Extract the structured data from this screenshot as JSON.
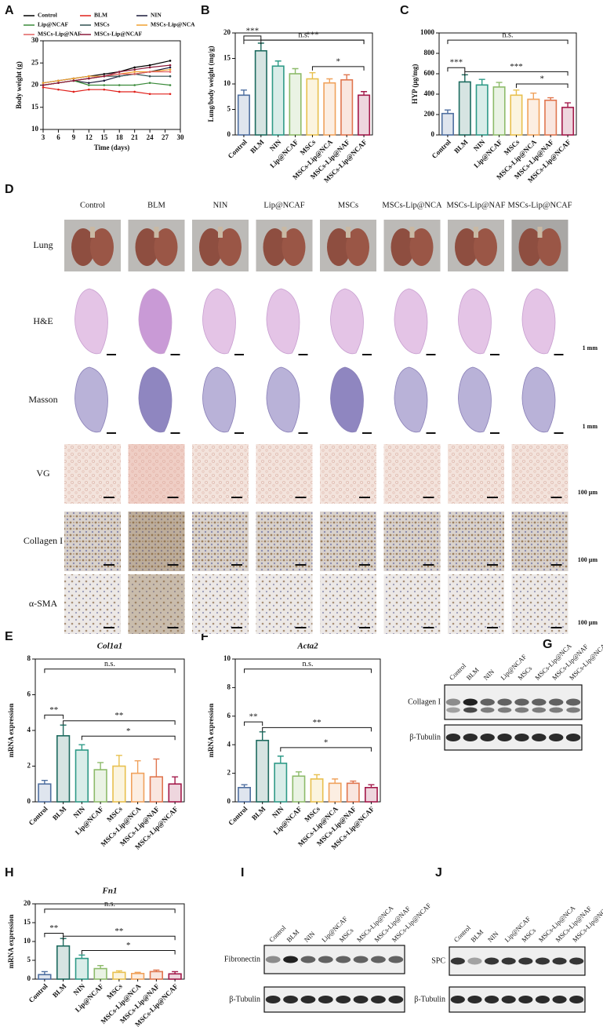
{
  "chart_data": [
    {
      "panel": "A",
      "type": "line",
      "xlabel": "Time (days)",
      "ylabel": "Body weight (g)",
      "x": [
        3,
        6,
        9,
        12,
        15,
        18,
        21,
        24,
        28
      ],
      "xlim": [
        3,
        30
      ],
      "xticks": [
        3,
        6,
        9,
        12,
        15,
        18,
        21,
        24,
        27,
        30
      ],
      "ylim": [
        10,
        30
      ],
      "yticks": [
        10,
        15,
        20,
        25,
        30
      ],
      "series": [
        {
          "name": "Control",
          "color": "#000000",
          "values": [
            20.5,
            21,
            21.5,
            22,
            22.5,
            23,
            24,
            24.5,
            25.5
          ]
        },
        {
          "name": "BLM",
          "color": "#e0201b",
          "values": [
            19.5,
            19,
            18.5,
            19,
            19,
            18.5,
            18.5,
            18,
            18
          ]
        },
        {
          "name": "NIN",
          "color": "#1a1a3a",
          "values": [
            20,
            20.5,
            21,
            20.5,
            21,
            22,
            22.5,
            23,
            24
          ]
        },
        {
          "name": "Lip@NCAF",
          "color": "#3a8a3a",
          "values": [
            20,
            20.5,
            21,
            20,
            20,
            20,
            20,
            20.5,
            20
          ]
        },
        {
          "name": "MSCs",
          "color": "#2f4f4f",
          "values": [
            20,
            20.5,
            21,
            21.5,
            22,
            22,
            22.5,
            22,
            22
          ]
        },
        {
          "name": "MSCs-Lip@NCA",
          "color": "#f0a030",
          "values": [
            20.5,
            21,
            21.5,
            22,
            22,
            22.5,
            23,
            23,
            23.5
          ]
        },
        {
          "name": "MSCs-Lip@NAF",
          "color": "#e06060",
          "values": [
            20,
            20.5,
            21,
            21.5,
            22,
            22.5,
            22.5,
            23,
            23
          ]
        },
        {
          "name": "MSCs-Lip@NCAF",
          "color": "#8b1a3a",
          "values": [
            20,
            20.5,
            21,
            21.5,
            22,
            23,
            23.5,
            24,
            24.5
          ]
        }
      ]
    },
    {
      "panel": "B",
      "type": "bar",
      "ylabel": "Lung/body weight (mg/g)",
      "categories": [
        "Control",
        "BLM",
        "NIN",
        "Lip@NCAF",
        "MSCs",
        "MSCs-Lip@NCA",
        "MSCs-Lip@NAF",
        "MSCs-Lip@NCAF"
      ],
      "values": [
        7.8,
        16.5,
        13.5,
        12,
        11,
        10.2,
        10.8,
        7.8
      ],
      "errors": [
        1,
        1.5,
        1,
        1,
        1.2,
        0.8,
        1,
        0.7
      ],
      "colors": [
        "#4f6fa0",
        "#1d6b5f",
        "#2e9a87",
        "#8dbb6a",
        "#e8c04e",
        "#f0a25c",
        "#e0764f",
        "#a3194a"
      ],
      "ylim": [
        0,
        20
      ],
      "yticks": [
        0,
        5,
        10,
        15,
        20
      ],
      "annotations": [
        "n.s.",
        "***",
        "***",
        "*"
      ]
    },
    {
      "panel": "C",
      "type": "bar",
      "ylabel": "HYP (μg/mg)",
      "categories": [
        "Control",
        "BLM",
        "NIN",
        "Lip@NCAF",
        "MSCs",
        "MSCs-Lip@NCA",
        "MSCs-Lip@NAF",
        "MSCs-Lip@NCAF"
      ],
      "values": [
        210,
        520,
        490,
        470,
        390,
        350,
        340,
        270
      ],
      "errors": [
        35,
        70,
        55,
        45,
        50,
        60,
        25,
        45
      ],
      "colors": [
        "#4f6fa0",
        "#1d6b5f",
        "#2e9a87",
        "#8dbb6a",
        "#e8c04e",
        "#f0a25c",
        "#e0764f",
        "#a3194a"
      ],
      "ylim": [
        0,
        1000
      ],
      "yticks": [
        0,
        200,
        400,
        600,
        800,
        1000
      ],
      "annotations": [
        "n.s.",
        "***",
        "***",
        "*"
      ]
    },
    {
      "panel": "E",
      "type": "bar",
      "title": "Col1a1",
      "ylabel": "mRNA expression",
      "categories": [
        "Control",
        "BLM",
        "NIN",
        "Lip@NCAF",
        "MSCs",
        "MSCs-Lip@NCA",
        "MSCs-Lip@NAF",
        "MSCs-Lip@NCAF"
      ],
      "values": [
        1.0,
        3.7,
        2.9,
        1.8,
        2.0,
        1.6,
        1.4,
        1.0
      ],
      "errors": [
        0.2,
        0.6,
        0.3,
        0.4,
        0.6,
        0.7,
        1.0,
        0.4
      ],
      "colors": [
        "#4f6fa0",
        "#1d6b5f",
        "#2e9a87",
        "#8dbb6a",
        "#e8c04e",
        "#f0a25c",
        "#e0764f",
        "#a3194a"
      ],
      "ylim": [
        0,
        8
      ],
      "yticks": [
        0,
        2,
        4,
        6,
        8
      ],
      "annotations": [
        "n.s.",
        "**",
        "**",
        "*"
      ]
    },
    {
      "panel": "F",
      "type": "bar",
      "title": "Acta2",
      "ylabel": "mRNA expression",
      "categories": [
        "Control",
        "BLM",
        "NIN",
        "Lip@NCAF",
        "MSCs",
        "MSCs-Lip@NCA",
        "MSCs-Lip@NAF",
        "MSCs-Lip@NCAF"
      ],
      "values": [
        1.0,
        4.3,
        2.7,
        1.8,
        1.6,
        1.3,
        1.3,
        1.0
      ],
      "errors": [
        0.2,
        0.6,
        0.5,
        0.3,
        0.3,
        0.3,
        0.15,
        0.2
      ],
      "colors": [
        "#4f6fa0",
        "#1d6b5f",
        "#2e9a87",
        "#8dbb6a",
        "#e8c04e",
        "#f0a25c",
        "#e0764f",
        "#a3194a"
      ],
      "ylim": [
        0,
        10
      ],
      "yticks": [
        0,
        2,
        4,
        6,
        8,
        10
      ],
      "annotations": [
        "n.s.",
        "**",
        "**",
        "*"
      ]
    },
    {
      "panel": "H",
      "type": "bar",
      "title": "Fn1",
      "ylabel": "mRNA expression",
      "categories": [
        "Control",
        "BLM",
        "NIN",
        "Lip@NCAF",
        "MSCs",
        "MSCs-Lip@NCA",
        "MSCs-Lip@NAF",
        "MSCs-Lip@NCAF"
      ],
      "values": [
        1.2,
        8.8,
        5.5,
        2.8,
        1.8,
        1.5,
        2.0,
        1.4
      ],
      "errors": [
        0.8,
        2.0,
        0.9,
        0.8,
        0.4,
        0.3,
        0.4,
        0.6
      ],
      "colors": [
        "#4f6fa0",
        "#1d6b5f",
        "#2e9a87",
        "#8dbb6a",
        "#e8c04e",
        "#f0a25c",
        "#e0764f",
        "#a3194a"
      ],
      "ylim": [
        0,
        20
      ],
      "yticks": [
        0,
        5,
        10,
        15,
        20
      ],
      "annotations": [
        "n.s.",
        "**",
        "**",
        "*"
      ]
    }
  ],
  "image_panel": {
    "label": "D",
    "columns": [
      "Control",
      "BLM",
      "NIN",
      "Lip@NCAF",
      "MSCs",
      "MSCs-Lip@NCA",
      "MSCs-Lip@NAF",
      "MSCs-Lip@NCAF"
    ],
    "rows": [
      {
        "name": "Lung"
      },
      {
        "name": "H&E",
        "scale": "1 mm"
      },
      {
        "name": "Masson",
        "scale": "1 mm"
      },
      {
        "name": "VG",
        "scale": "100 μm"
      },
      {
        "name": "Collagen I",
        "scale": "100 μm"
      },
      {
        "name": "α-SMA",
        "scale": "100 μm"
      }
    ]
  },
  "blots": [
    {
      "label": "G",
      "lanes": [
        "Control",
        "BLM",
        "NIN",
        "Lip@NCAF",
        "MSCs",
        "MSCs-Lip@NCA",
        "MSCs-Lip@NAF",
        "MSCs-Lip@NCAF"
      ],
      "rows": [
        "Collagen I",
        "β-Tubulin"
      ]
    },
    {
      "label": "I",
      "lanes": [
        "Control",
        "BLM",
        "NIN",
        "Lip@NCAF",
        "MSCs",
        "MSCs-Lip@NCA",
        "MSCs-Lip@NAF",
        "MSCs-Lip@NCAF"
      ],
      "rows": [
        "Fibronectin",
        "β-Tubulin"
      ]
    },
    {
      "label": "J",
      "lanes": [
        "Control",
        "BLM",
        "NIN",
        "Lip@NCAF",
        "MSCs",
        "MSCs-Lip@NCA",
        "MSCs-Lip@NAF",
        "MSCs-Lip@NCAF"
      ],
      "rows": [
        "SPC",
        "β-Tubulin"
      ]
    }
  ]
}
